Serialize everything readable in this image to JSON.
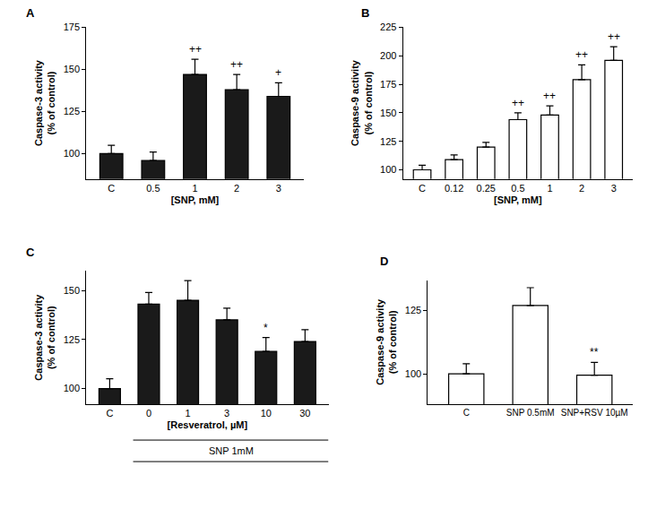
{
  "chart_data": [
    {
      "type": "bar",
      "title": "A",
      "y_label": [
        "Caspase-3 activity",
        "(% of control)"
      ],
      "x_label": "[SNP, mM]",
      "categories": [
        "C",
        "0.5",
        "1",
        "2",
        "3"
      ],
      "values": [
        100,
        96,
        147,
        138,
        134
      ],
      "errors": [
        5,
        5,
        9,
        9,
        8
      ],
      "annotations": [
        {
          "category": "1",
          "text": "++"
        },
        {
          "category": "2",
          "text": "++"
        },
        {
          "category": "3",
          "text": "+"
        }
      ],
      "color": "#1a1a1a",
      "ylim": [
        85,
        175
      ],
      "yticks": [
        100,
        125,
        150,
        175
      ]
    },
    {
      "type": "bar",
      "title": "B",
      "y_label": [
        "Caspase-9 activity",
        "(% of control)"
      ],
      "x_label": "[SNP, mM]",
      "categories": [
        "C",
        "0.12",
        "0.25",
        "0.5",
        "1",
        "2",
        "3"
      ],
      "values": [
        100,
        109,
        120,
        144,
        148,
        179,
        196
      ],
      "errors": [
        4,
        4,
        4,
        6,
        8,
        13,
        12
      ],
      "annotations": [
        {
          "category": "0.5",
          "text": "++"
        },
        {
          "category": "1",
          "text": "++"
        },
        {
          "category": "2",
          "text": "++"
        },
        {
          "category": "3",
          "text": "++"
        }
      ],
      "color": "#ffffff",
      "ylim": [
        92,
        225
      ],
      "yticks": [
        100,
        125,
        150,
        175,
        200,
        225
      ]
    },
    {
      "type": "bar",
      "title": "C",
      "y_label": [
        "Caspase-3 activity",
        "(% of control)"
      ],
      "x_label": "[Resveratrol, µM]",
      "group_label": "SNP 1mM",
      "categories": [
        "C",
        "0",
        "1",
        "3",
        "10",
        "30"
      ],
      "values": [
        100,
        143,
        145,
        135,
        119,
        124
      ],
      "errors": [
        5,
        6,
        10,
        6,
        7,
        6
      ],
      "annotations": [
        {
          "category": "10",
          "text": "*"
        }
      ],
      "color": "#1a1a1a",
      "ylim": [
        92,
        160
      ],
      "yticks": [
        100,
        125,
        150
      ]
    },
    {
      "type": "bar",
      "title": "D",
      "y_label": [
        "Caspase-9 activity",
        "(% of control)"
      ],
      "categories": [
        "C",
        "SNP 0.5mM",
        "SNP+RSV 10µM"
      ],
      "values": [
        100,
        127,
        99.5
      ],
      "errors": [
        4,
        7,
        5
      ],
      "annotations": [
        {
          "category": "SNP+RSV 10µM",
          "text": "**"
        }
      ],
      "color": "#ffffff",
      "ylim": [
        88,
        137
      ],
      "yticks": [
        100,
        125
      ]
    }
  ]
}
